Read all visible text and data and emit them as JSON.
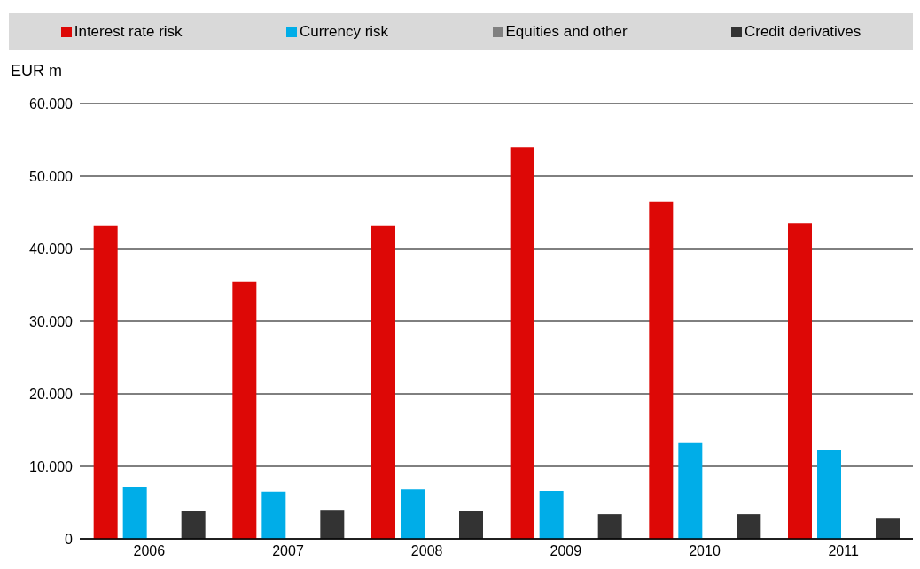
{
  "chart_data": {
    "type": "bar",
    "ylabel": "EUR m",
    "categories": [
      "2006",
      "2007",
      "2008",
      "2009",
      "2010",
      "2011"
    ],
    "series": [
      {
        "name": "Interest rate risk",
        "color": "#dd0806",
        "values": [
          43200,
          35400,
          43200,
          54000,
          46500,
          43500
        ]
      },
      {
        "name": "Currency risk",
        "color": "#00ade8",
        "values": [
          7200,
          6500,
          6800,
          6600,
          13200,
          12300
        ]
      },
      {
        "name": "Equities and other",
        "color": "#808080",
        "values": [
          0,
          0,
          0,
          0,
          0,
          0
        ]
      },
      {
        "name": "Credit derivatives",
        "color": "#333333",
        "values": [
          3900,
          4000,
          3900,
          3400,
          3400,
          2900
        ]
      }
    ],
    "ylim": [
      0,
      60000
    ],
    "yticks": [
      {
        "value": 0,
        "label": "0"
      },
      {
        "value": 10000,
        "label": "10.000"
      },
      {
        "value": 20000,
        "label": "20.000"
      },
      {
        "value": 30000,
        "label": "30.000"
      },
      {
        "value": 40000,
        "label": "40.000"
      },
      {
        "value": 50000,
        "label": "50.000"
      },
      {
        "value": 60000,
        "label": "60.000"
      }
    ],
    "grid": "y",
    "legend": "top"
  }
}
